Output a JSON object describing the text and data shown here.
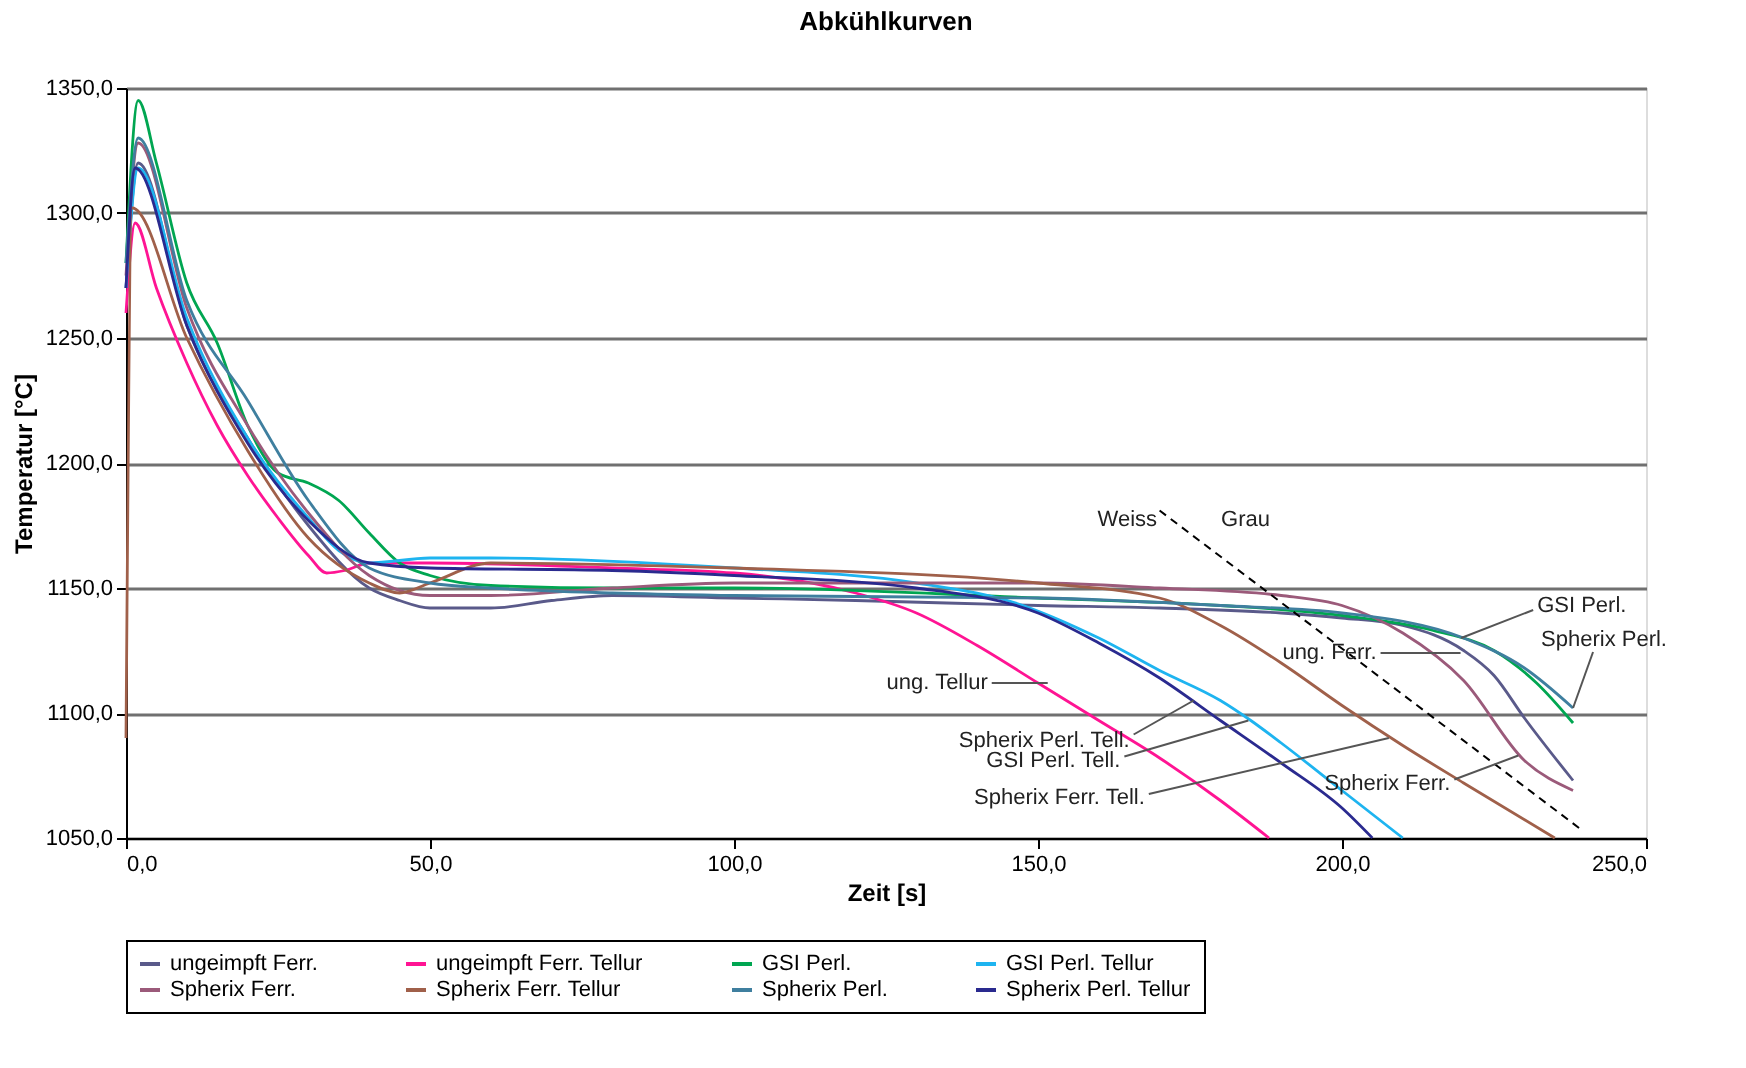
{
  "chart_data": {
    "type": "line",
    "title": "Abkühlkurven",
    "xlabel": "Zeit [s]",
    "ylabel": "Temperatur [°C]",
    "xlim": [
      0,
      250
    ],
    "ylim": [
      1050,
      1350
    ],
    "xticks": [
      {
        "value": 0,
        "label": "0,0"
      },
      {
        "value": 50,
        "label": "50,0"
      },
      {
        "value": 100,
        "label": "100,0"
      },
      {
        "value": 150,
        "label": "150,0"
      },
      {
        "value": 200,
        "label": "200,0"
      },
      {
        "value": 250,
        "label": "250,0"
      }
    ],
    "yticks": [
      {
        "value": 1050,
        "label": "1050,0"
      },
      {
        "value": 1100,
        "label": "1100,0"
      },
      {
        "value": 1150,
        "label": "1150,0"
      },
      {
        "value": 1200,
        "label": "1200,0"
      },
      {
        "value": 1250,
        "label": "1250,0"
      },
      {
        "value": 1300,
        "label": "1300,0"
      },
      {
        "value": 1350,
        "label": "1350,0"
      }
    ],
    "grid": "y",
    "legend": "bottom",
    "marker": "none",
    "line_style": "solid",
    "series": [
      {
        "name": "ungeimpft Ferr.",
        "color": "#5a5a8a",
        "x": [
          0,
          2,
          10,
          20,
          30,
          40,
          45,
          50,
          60,
          70,
          80,
          100,
          120,
          150,
          170,
          190,
          200,
          210,
          220,
          225,
          230,
          238
        ],
        "values": [
          1270,
          1320,
          1255,
          1210,
          1175,
          1150,
          1145,
          1142,
          1142,
          1145,
          1147,
          1146,
          1145,
          1143,
          1142,
          1140,
          1138,
          1135,
          1125,
          1115,
          1098,
          1073
        ]
      },
      {
        "name": "ungeimpft Ferr. Tellur",
        "color": "#ff1493",
        "x": [
          0,
          1.5,
          5,
          10,
          15,
          20,
          25,
          30,
          33,
          36,
          40,
          50,
          80,
          100,
          120,
          130,
          140,
          150,
          160,
          170,
          180,
          188
        ],
        "values": [
          1260,
          1296,
          1270,
          1240,
          1215,
          1195,
          1178,
          1163,
          1156,
          1157,
          1160,
          1160,
          1158,
          1156,
          1148,
          1140,
          1127,
          1112,
          1097,
          1082,
          1065,
          1050
        ]
      },
      {
        "name": "GSI Perl.",
        "color": "#00a651",
        "x": [
          0,
          2,
          5,
          10,
          15,
          20,
          25,
          30,
          35,
          40,
          45,
          50,
          60,
          80,
          100,
          150,
          180,
          200,
          215,
          225,
          232,
          238
        ],
        "values": [
          1280,
          1345,
          1320,
          1272,
          1248,
          1215,
          1196,
          1192,
          1185,
          1172,
          1160,
          1155,
          1151,
          1150,
          1150,
          1146,
          1143,
          1139,
          1133,
          1125,
          1112,
          1096
        ]
      },
      {
        "name": "GSI Perl. Tellur",
        "color": "#1eb4f0",
        "x": [
          0,
          2,
          10,
          20,
          30,
          35,
          40,
          50,
          60,
          100,
          130,
          145,
          160,
          170,
          180,
          185,
          190,
          200,
          210
        ],
        "values": [
          1270,
          1318,
          1258,
          1210,
          1178,
          1165,
          1160,
          1162,
          1162,
          1158,
          1152,
          1145,
          1130,
          1117,
          1105,
          1097,
          1088,
          1069,
          1050
        ]
      },
      {
        "name": "Spherix Ferr.",
        "color": "#9b5a7a",
        "x": [
          0,
          2,
          10,
          20,
          30,
          40,
          50,
          60,
          80,
          100,
          150,
          170,
          190,
          200,
          210,
          220,
          230,
          238
        ],
        "values": [
          1275,
          1328,
          1262,
          1215,
          1180,
          1155,
          1147,
          1147,
          1150,
          1152,
          1152,
          1150,
          1147,
          1143,
          1132,
          1113,
          1081,
          1069
        ]
      },
      {
        "name": "Spherix Ferr. Tellur",
        "color": "#a0604a",
        "x": [
          0,
          1,
          10,
          20,
          30,
          40,
          45,
          50,
          60,
          100,
          150,
          170,
          180,
          190,
          200,
          210,
          220,
          235
        ],
        "values": [
          1090,
          1302,
          1250,
          1205,
          1170,
          1152,
          1148,
          1152,
          1160,
          1158,
          1152,
          1146,
          1135,
          1120,
          1103,
          1087,
          1072,
          1050
        ]
      },
      {
        "name": "Spherix Perl.",
        "color": "#3f7f9f",
        "x": [
          0,
          2,
          10,
          20,
          30,
          40,
          50,
          60,
          80,
          100,
          150,
          180,
          200,
          220,
          230,
          238
        ],
        "values": [
          1280,
          1330,
          1265,
          1225,
          1185,
          1158,
          1152,
          1150,
          1148,
          1147,
          1146,
          1143,
          1140,
          1130,
          1118,
          1102
        ]
      },
      {
        "name": "Spherix Perl. Tellur",
        "color": "#2a2a8f",
        "x": [
          0,
          1.5,
          10,
          20,
          30,
          40,
          50,
          80,
          100,
          130,
          150,
          160,
          170,
          180,
          190,
          200,
          205
        ],
        "values": [
          1270,
          1318,
          1255,
          1208,
          1177,
          1160,
          1158,
          1157,
          1155,
          1150,
          1140,
          1128,
          1114,
          1097,
          1080,
          1062,
          1050
        ]
      },
      {
        "color": "#000000",
        "line_style": "dashed",
        "x": [
          170,
          239
        ],
        "values": [
          1181,
          1054
        ]
      }
    ],
    "annotations": [
      {
        "text": "Weiss",
        "x": 175.5,
        "y": 1171
      },
      {
        "text": "Grau",
        "x": 175.5,
        "y": 1171
      },
      {
        "text": "GSI Perl.",
        "x": 219.6,
        "y": 1130
      },
      {
        "text": "Spherix Perl.",
        "x": 238,
        "y": 1102
      },
      {
        "text": "ung. Ferr.",
        "x": 219.5,
        "y": 1124
      },
      {
        "text": "ung. Tellur",
        "x": 151.6,
        "y": 1112
      },
      {
        "text": "Spherix Perl. Tell.",
        "x": 175.6,
        "y": 1105
      },
      {
        "text": "GSI Perl. Tell.",
        "x": 184.6,
        "y": 1097
      },
      {
        "text": "Spherix Ferr. Tell.",
        "x": 207.7,
        "y": 1090
      },
      {
        "text": "Spherix Ferr.",
        "x": 229,
        "y": 1083
      }
    ]
  }
}
